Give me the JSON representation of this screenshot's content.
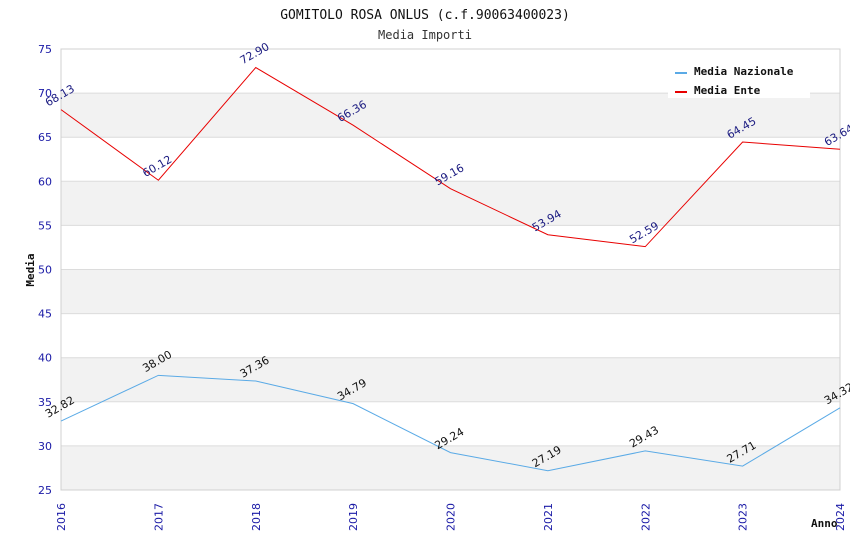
{
  "chart_data": {
    "type": "line",
    "title": "GOMITOLO ROSA ONLUS (c.f.90063400023)",
    "subtitle": "Media Importi",
    "xlabel": "Anno",
    "ylabel": "Media",
    "ylim": [
      25,
      75
    ],
    "yticks": [
      "25",
      "30",
      "35",
      "40",
      "45",
      "50",
      "55",
      "60",
      "65",
      "70",
      "75"
    ],
    "x": [
      "2016",
      "2017",
      "2018",
      "2019",
      "2020",
      "2021",
      "2022",
      "2023",
      "2024"
    ],
    "legend_position": "top-right",
    "series": [
      {
        "name": "Media Nazionale",
        "color": "#5aaae6",
        "values": [
          32.82,
          38.0,
          37.36,
          34.79,
          29.24,
          27.19,
          29.43,
          27.71,
          34.32
        ],
        "labels": [
          "32.82",
          "38.00",
          "37.36",
          "34.79",
          "29.24",
          "27.19",
          "29.43",
          "27.71",
          "34.32"
        ]
      },
      {
        "name": "Media Ente",
        "color": "#e80000",
        "values": [
          68.13,
          60.12,
          72.9,
          66.36,
          59.16,
          53.94,
          52.59,
          64.45,
          63.64
        ],
        "labels": [
          "68.13",
          "60.12",
          "72.90",
          "66.36",
          "59.16",
          "53.94",
          "52.59",
          "64.45",
          "63.64"
        ]
      }
    ]
  }
}
